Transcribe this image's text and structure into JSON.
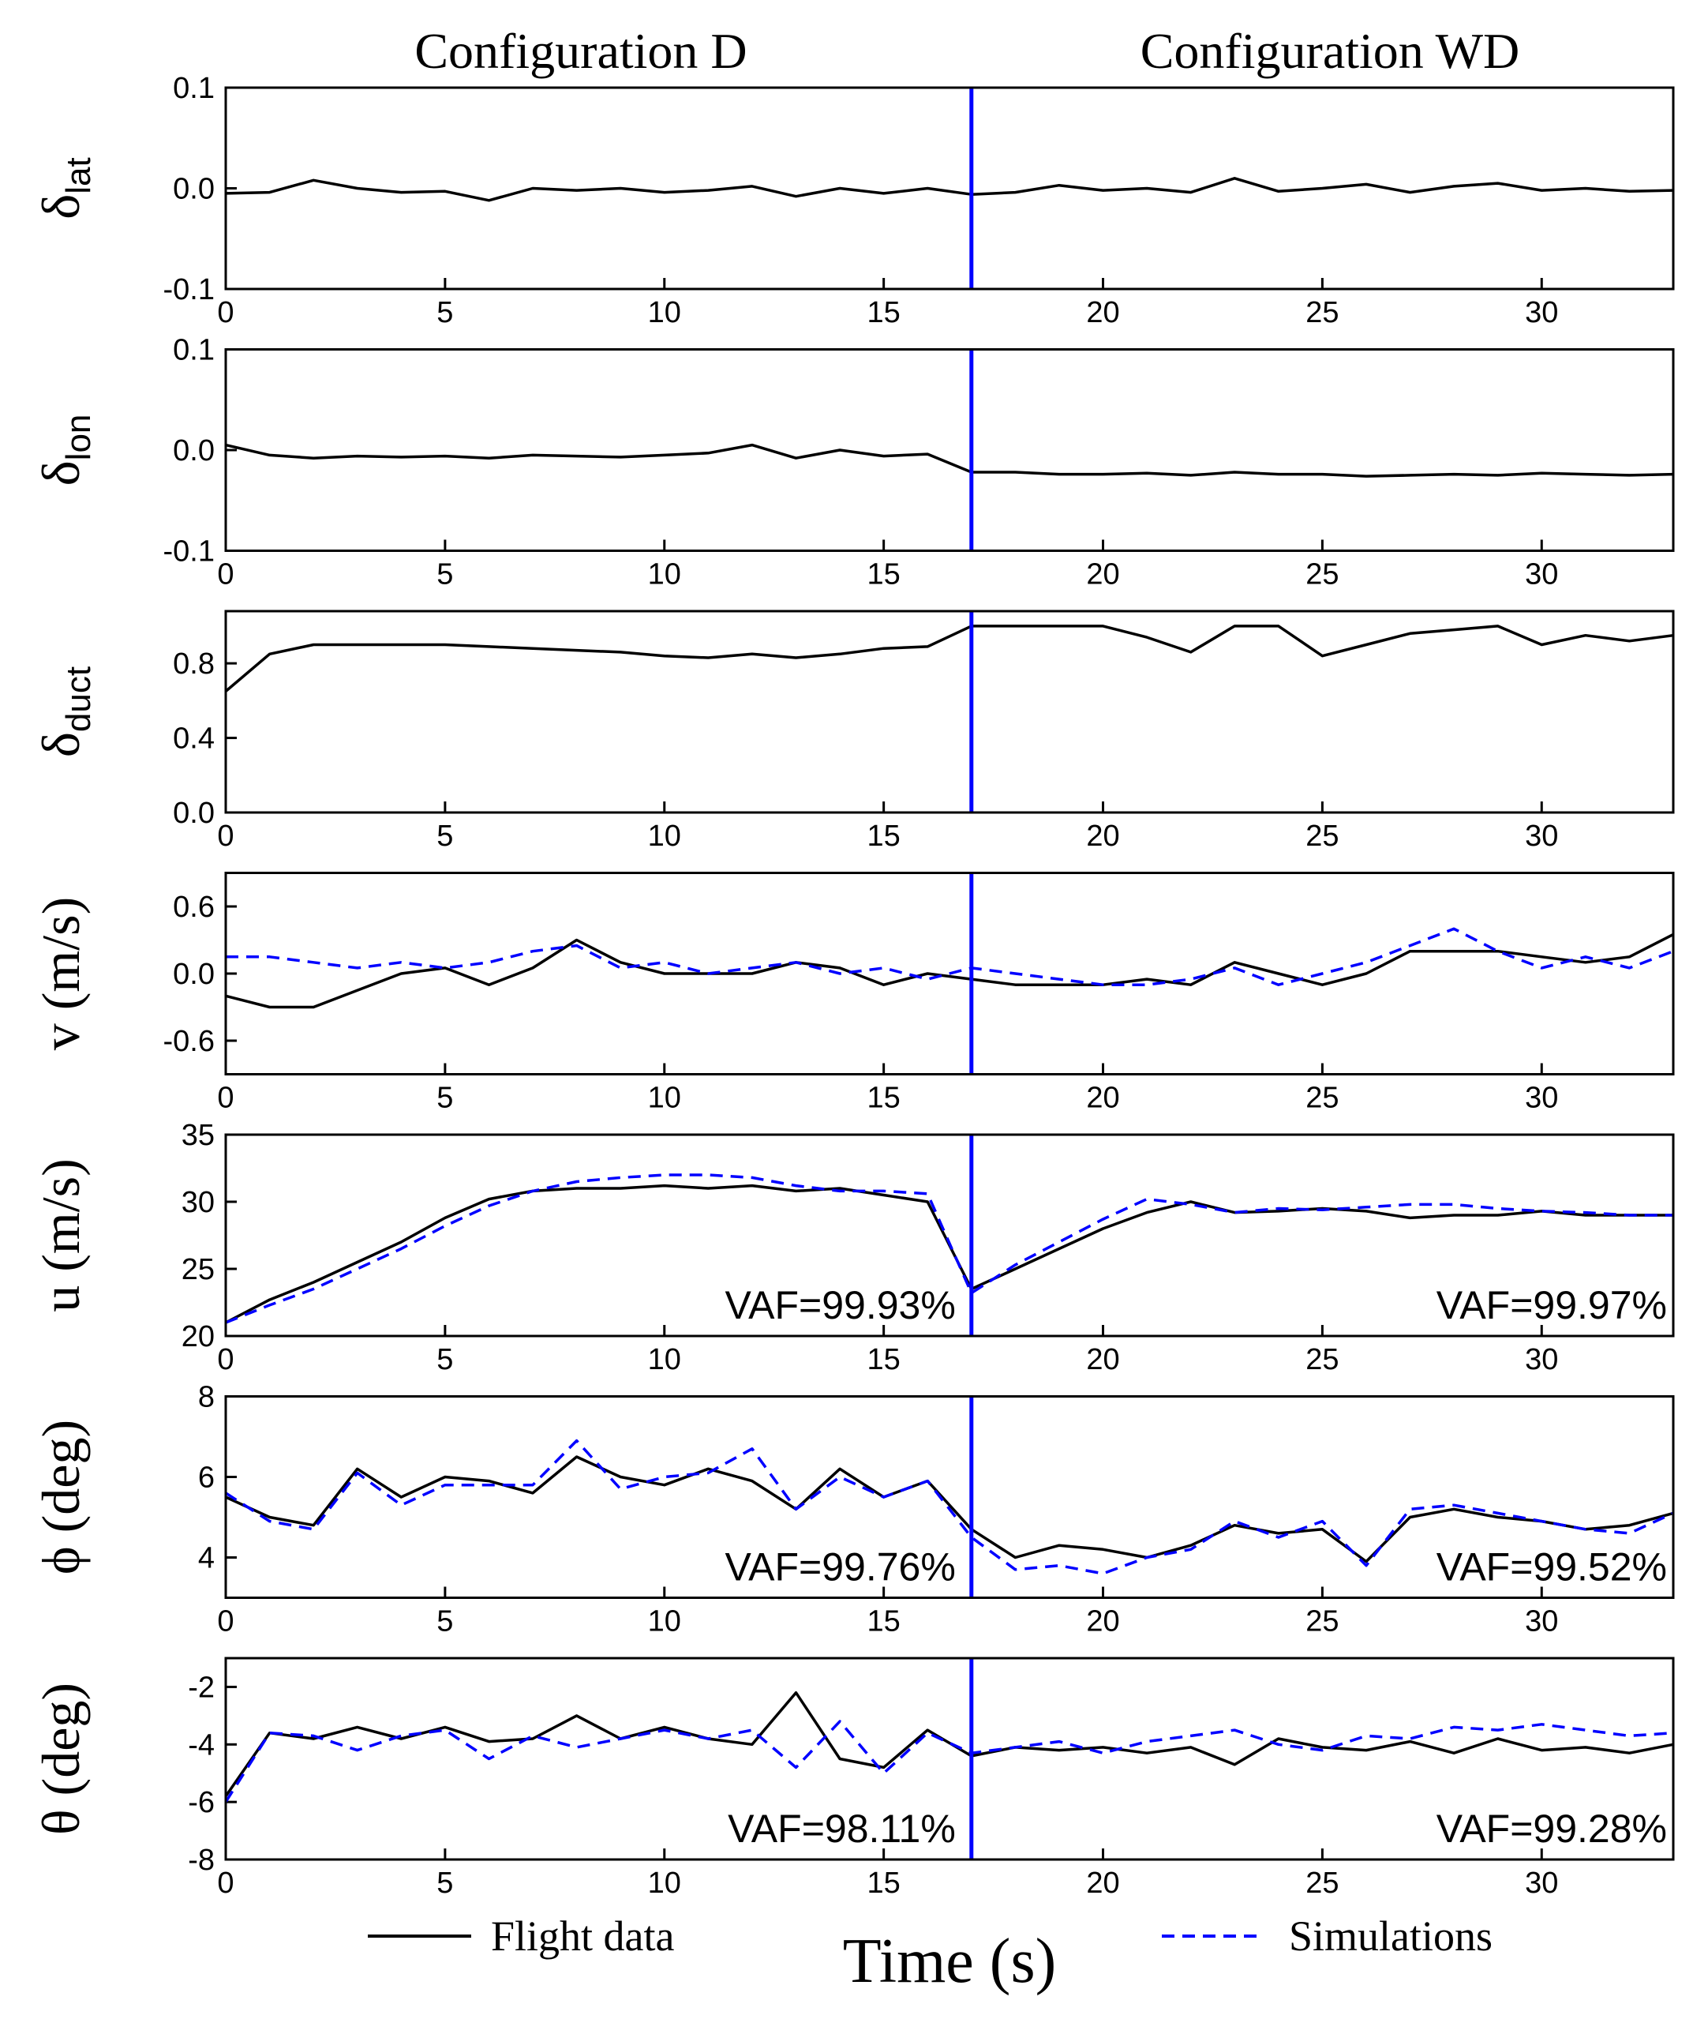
{
  "chart_data": [
    {
      "type": "line",
      "column_titles": [
        "Configuration D",
        "Configuration WD"
      ],
      "ylabel": "δ",
      "ylabel_sub": "lat",
      "x": [
        0,
        1,
        2,
        3,
        4,
        5,
        6,
        7,
        8,
        9,
        10,
        11,
        12,
        13,
        14,
        15,
        16,
        17,
        18,
        19,
        20,
        21,
        22,
        23,
        24,
        25,
        26,
        27,
        28,
        29,
        30,
        31,
        32,
        33
      ],
      "xlim": [
        0,
        33
      ],
      "xticks": [
        0,
        5,
        10,
        15,
        20,
        25,
        30
      ],
      "ylim": [
        -0.1,
        0.1
      ],
      "yticks": [
        -0.1,
        {
          "value": 0,
          "label": "0.0"
        },
        0.1
      ],
      "vline": 17,
      "vline_color": "#0000ff",
      "series": [
        {
          "name": "Flight data",
          "color": "#000000",
          "dash": false,
          "values": [
            -0.005,
            -0.004,
            0.008,
            0.0,
            -0.004,
            -0.003,
            -0.012,
            0.0,
            -0.002,
            0.0,
            -0.004,
            -0.002,
            0.002,
            -0.008,
            0.0,
            -0.005,
            0.0,
            -0.006,
            -0.004,
            0.003,
            -0.002,
            0.0,
            -0.004,
            0.01,
            -0.003,
            0.0,
            0.004,
            -0.004,
            0.002,
            0.005,
            -0.002,
            0.0,
            -0.003,
            -0.002
          ]
        }
      ]
    },
    {
      "type": "line",
      "ylabel": "δ",
      "ylabel_sub": "lon",
      "x": [
        0,
        1,
        2,
        3,
        4,
        5,
        6,
        7,
        8,
        9,
        10,
        11,
        12,
        13,
        14,
        15,
        16,
        17,
        18,
        19,
        20,
        21,
        22,
        23,
        24,
        25,
        26,
        27,
        28,
        29,
        30,
        31,
        32,
        33
      ],
      "xlim": [
        0,
        33
      ],
      "xticks": [
        0,
        5,
        10,
        15,
        20,
        25,
        30
      ],
      "ylim": [
        -0.1,
        0.1
      ],
      "yticks": [
        -0.1,
        {
          "value": 0,
          "label": "0.0"
        },
        0.1
      ],
      "vline": 17,
      "vline_color": "#0000ff",
      "series": [
        {
          "name": "Flight data",
          "color": "#000000",
          "dash": false,
          "values": [
            0.005,
            -0.005,
            -0.008,
            -0.006,
            -0.007,
            -0.006,
            -0.008,
            -0.005,
            -0.006,
            -0.007,
            -0.005,
            -0.003,
            0.005,
            -0.008,
            0.0,
            -0.006,
            -0.004,
            -0.022,
            -0.022,
            -0.024,
            -0.024,
            -0.023,
            -0.025,
            -0.022,
            -0.024,
            -0.024,
            -0.026,
            -0.025,
            -0.024,
            -0.025,
            -0.023,
            -0.024,
            -0.025,
            -0.024
          ]
        }
      ]
    },
    {
      "type": "line",
      "ylabel": "δ",
      "ylabel_sub": "duct",
      "x": [
        0,
        1,
        2,
        3,
        4,
        5,
        6,
        7,
        8,
        9,
        10,
        11,
        12,
        13,
        14,
        15,
        16,
        17,
        18,
        19,
        20,
        21,
        22,
        23,
        24,
        25,
        26,
        27,
        28,
        29,
        30,
        31,
        32,
        33
      ],
      "xlim": [
        0,
        33
      ],
      "xticks": [
        0,
        5,
        10,
        15,
        20,
        25,
        30
      ],
      "ylim": [
        0,
        1.08
      ],
      "yticks": [
        {
          "value": 0,
          "label": "0.0"
        },
        0.4,
        0.8
      ],
      "vline": 17,
      "vline_color": "#0000ff",
      "series": [
        {
          "name": "Flight data",
          "color": "#000000",
          "dash": false,
          "values": [
            0.65,
            0.85,
            0.9,
            0.9,
            0.9,
            0.9,
            0.89,
            0.88,
            0.87,
            0.86,
            0.84,
            0.83,
            0.85,
            0.83,
            0.85,
            0.88,
            0.89,
            1.0,
            1.0,
            1.0,
            1.0,
            0.94,
            0.86,
            1.0,
            1.0,
            0.84,
            0.9,
            0.96,
            0.98,
            1.0,
            0.9,
            0.95,
            0.92,
            0.95
          ]
        }
      ]
    },
    {
      "type": "line",
      "ylabel": "v (m/s)",
      "x": [
        0,
        1,
        2,
        3,
        4,
        5,
        6,
        7,
        8,
        9,
        10,
        11,
        12,
        13,
        14,
        15,
        16,
        17,
        18,
        19,
        20,
        21,
        22,
        23,
        24,
        25,
        26,
        27,
        28,
        29,
        30,
        31,
        32,
        33
      ],
      "xlim": [
        0,
        33
      ],
      "xticks": [
        0,
        5,
        10,
        15,
        20,
        25,
        30
      ],
      "ylim": [
        -0.9,
        0.9
      ],
      "yticks": [
        -0.6,
        {
          "value": 0,
          "label": "0.0"
        },
        0.6
      ],
      "vline": 17,
      "vline_color": "#0000ff",
      "series": [
        {
          "name": "Flight data",
          "color": "#000000",
          "dash": false,
          "values": [
            -0.2,
            -0.3,
            -0.3,
            -0.15,
            0.0,
            0.05,
            -0.1,
            0.05,
            0.3,
            0.1,
            0.0,
            0.0,
            0.0,
            0.1,
            0.05,
            -0.1,
            0.0,
            -0.05,
            -0.1,
            -0.1,
            -0.1,
            -0.05,
            -0.1,
            0.1,
            0.0,
            -0.1,
            0.0,
            0.2,
            0.2,
            0.2,
            0.15,
            0.1,
            0.15,
            0.35
          ]
        },
        {
          "name": "Simulations",
          "color": "#0000ff",
          "dash": true,
          "values": [
            0.15,
            0.15,
            0.1,
            0.05,
            0.1,
            0.05,
            0.1,
            0.2,
            0.25,
            0.05,
            0.1,
            0.0,
            0.05,
            0.1,
            0.0,
            0.05,
            -0.05,
            0.05,
            0.0,
            -0.05,
            -0.1,
            -0.1,
            -0.05,
            0.05,
            -0.1,
            0.0,
            0.1,
            0.25,
            0.4,
            0.2,
            0.05,
            0.15,
            0.05,
            0.2
          ]
        }
      ]
    },
    {
      "type": "line",
      "ylabel": "u (m/s)",
      "annotations": [
        "VAF=99.93%",
        "VAF=99.97%"
      ],
      "x": [
        0,
        1,
        2,
        3,
        4,
        5,
        6,
        7,
        8,
        9,
        10,
        11,
        12,
        13,
        14,
        15,
        16,
        17,
        18,
        19,
        20,
        21,
        22,
        23,
        24,
        25,
        26,
        27,
        28,
        29,
        30,
        31,
        32,
        33
      ],
      "xlim": [
        0,
        33
      ],
      "xticks": [
        0,
        5,
        10,
        15,
        20,
        25,
        30
      ],
      "ylim": [
        20,
        35
      ],
      "yticks": [
        20,
        25,
        30,
        35
      ],
      "vline": 17,
      "vline_color": "#0000ff",
      "series": [
        {
          "name": "Flight data",
          "color": "#000000",
          "dash": false,
          "values": [
            21,
            22.7,
            24,
            25.5,
            27,
            28.8,
            30.2,
            30.8,
            31,
            31,
            31.2,
            31,
            31.2,
            30.8,
            31,
            30.5,
            30,
            23.5,
            25,
            26.5,
            28,
            29.2,
            30,
            29.2,
            29.3,
            29.5,
            29.3,
            28.8,
            29,
            29,
            29.3,
            29,
            29,
            29
          ]
        },
        {
          "name": "Simulations",
          "color": "#0000ff",
          "dash": true,
          "values": [
            21,
            22.3,
            23.5,
            25,
            26.5,
            28.2,
            29.7,
            30.8,
            31.5,
            31.8,
            32,
            32,
            31.8,
            31.2,
            30.8,
            30.8,
            30.6,
            23.2,
            25.3,
            27,
            28.7,
            30.2,
            29.8,
            29.2,
            29.5,
            29.4,
            29.6,
            29.8,
            29.8,
            29.5,
            29.3,
            29.2,
            29,
            29
          ]
        }
      ]
    },
    {
      "type": "line",
      "ylabel": "ϕ (deg)",
      "annotations": [
        "VAF=99.76%",
        "VAF=99.52%"
      ],
      "x": [
        0,
        1,
        2,
        3,
        4,
        5,
        6,
        7,
        8,
        9,
        10,
        11,
        12,
        13,
        14,
        15,
        16,
        17,
        18,
        19,
        20,
        21,
        22,
        23,
        24,
        25,
        26,
        27,
        28,
        29,
        30,
        31,
        32,
        33
      ],
      "xlim": [
        0,
        33
      ],
      "xticks": [
        0,
        5,
        10,
        15,
        20,
        25,
        30
      ],
      "ylim": [
        3,
        8
      ],
      "yticks": [
        4,
        6,
        8
      ],
      "vline": 17,
      "vline_color": "#0000ff",
      "series": [
        {
          "name": "Flight data",
          "color": "#000000",
          "dash": false,
          "values": [
            5.5,
            5,
            4.8,
            6.2,
            5.5,
            6,
            5.9,
            5.6,
            6.5,
            6,
            5.8,
            6.2,
            5.9,
            5.2,
            6.2,
            5.5,
            5.9,
            4.7,
            4,
            4.3,
            4.2,
            4,
            4.3,
            4.8,
            4.6,
            4.7,
            3.9,
            5,
            5.2,
            5,
            4.9,
            4.7,
            4.8,
            5.1
          ]
        },
        {
          "name": "Simulations",
          "color": "#0000ff",
          "dash": true,
          "values": [
            5.6,
            4.9,
            4.7,
            6.1,
            5.3,
            5.8,
            5.8,
            5.8,
            6.9,
            5.7,
            6,
            6.1,
            6.7,
            5.2,
            6,
            5.5,
            5.9,
            4.5,
            3.7,
            3.8,
            3.6,
            4,
            4.2,
            4.9,
            4.5,
            4.9,
            3.8,
            5.2,
            5.3,
            5.1,
            4.9,
            4.7,
            4.6,
            5.1
          ]
        }
      ]
    },
    {
      "type": "line",
      "ylabel": "θ (deg)",
      "annotations": [
        "VAF=98.11%",
        "VAF=99.28%"
      ],
      "xlabel": "Time (s)",
      "x": [
        0,
        1,
        2,
        3,
        4,
        5,
        6,
        7,
        8,
        9,
        10,
        11,
        12,
        13,
        14,
        15,
        16,
        17,
        18,
        19,
        20,
        21,
        22,
        23,
        24,
        25,
        26,
        27,
        28,
        29,
        30,
        31,
        32,
        33
      ],
      "xlim": [
        0,
        33
      ],
      "xticks": [
        0,
        5,
        10,
        15,
        20,
        25,
        30
      ],
      "ylim": [
        -8,
        -1
      ],
      "yticks": [
        -8,
        -6,
        -4,
        -2
      ],
      "vline": 17,
      "vline_color": "#0000ff",
      "series": [
        {
          "name": "Flight data",
          "color": "#000000",
          "dash": false,
          "values": [
            -5.8,
            -3.6,
            -3.8,
            -3.4,
            -3.8,
            -3.4,
            -3.9,
            -3.8,
            -3,
            -3.8,
            -3.4,
            -3.8,
            -4,
            -2.2,
            -4.5,
            -4.8,
            -3.5,
            -4.4,
            -4.1,
            -4.2,
            -4.1,
            -4.3,
            -4.1,
            -4.7,
            -3.8,
            -4.1,
            -4.2,
            -3.9,
            -4.3,
            -3.8,
            -4.2,
            -4.1,
            -4.3,
            -4
          ]
        },
        {
          "name": "Simulations",
          "color": "#0000ff",
          "dash": true,
          "values": [
            -6,
            -3.6,
            -3.7,
            -4.2,
            -3.7,
            -3.5,
            -4.5,
            -3.7,
            -4.1,
            -3.8,
            -3.5,
            -3.8,
            -3.5,
            -4.8,
            -3.2,
            -5,
            -3.6,
            -4.3,
            -4.1,
            -3.9,
            -4.3,
            -3.9,
            -3.7,
            -3.5,
            -4,
            -4.2,
            -3.7,
            -3.8,
            -3.4,
            -3.5,
            -3.3,
            -3.5,
            -3.7,
            -3.6
          ]
        }
      ]
    }
  ]
}
